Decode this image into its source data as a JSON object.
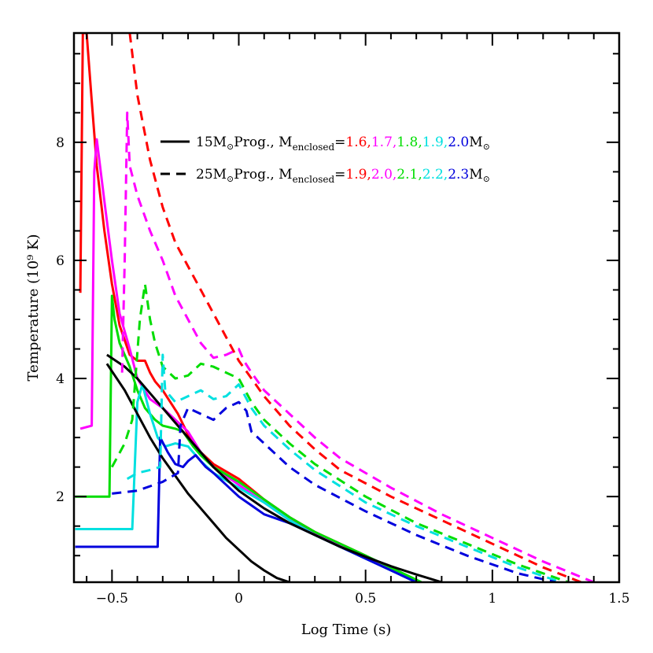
{
  "chart_data": {
    "type": "line",
    "xlabel": "Log Time (s)",
    "ylabel": "Temperature (10⁹ K)",
    "xlim": [
      -0.65,
      1.5
    ],
    "ylim": [
      0.55,
      9.85
    ],
    "x_ticks": [
      -0.5,
      0,
      0.5,
      1,
      1.5
    ],
    "x_tick_labels": [
      "−0.5",
      "0",
      "0.5",
      "1",
      "1.5"
    ],
    "y_ticks": [
      2,
      4,
      6,
      8
    ],
    "y_tick_labels": [
      "2",
      "4",
      "6",
      "8"
    ],
    "legend_placement": "top-center",
    "legend": [
      {
        "linestyle": "solid",
        "label_main": "15M",
        "label_sub1": "Prog., M",
        "label_sub2": "enclosed",
        "label_eq": "=",
        "masses": [
          {
            "text": "1.6,",
            "color": "#ff0000"
          },
          {
            "text": "1.7,",
            "color": "#ff00ff"
          },
          {
            "text": "1.8,",
            "color": "#00dd00"
          },
          {
            "text": "1.9,",
            "color": "#00e0e0"
          },
          {
            "text": "2.0",
            "color": "#0000dd"
          }
        ],
        "label_end": "M"
      },
      {
        "linestyle": "dashed",
        "label_main": "25M",
        "label_sub1": "Prog., M",
        "label_sub2": "enclosed",
        "label_eq": "=",
        "masses": [
          {
            "text": "1.9,",
            "color": "#ff0000"
          },
          {
            "text": "2.0,",
            "color": "#ff00ff"
          },
          {
            "text": "2.1,",
            "color": "#00dd00"
          },
          {
            "text": "2.2,",
            "color": "#00e0e0"
          },
          {
            "text": "2.3",
            "color": "#0000dd"
          }
        ],
        "label_end": "M"
      }
    ],
    "series": [
      {
        "color": "#ff0000",
        "dash": "solid",
        "x": [
          -0.625,
          -0.615,
          -0.6,
          -0.58,
          -0.56,
          -0.53,
          -0.5,
          -0.47,
          -0.43,
          -0.4,
          -0.37,
          -0.35,
          -0.33,
          -0.3,
          -0.27,
          -0.24,
          -0.2,
          -0.15,
          -0.1,
          0.0,
          0.1,
          0.2,
          0.3,
          0.5,
          0.7
        ],
        "y": [
          5.45,
          9.85,
          9.85,
          8.7,
          7.6,
          6.5,
          5.6,
          4.9,
          4.4,
          4.3,
          4.3,
          4.1,
          3.95,
          3.8,
          3.6,
          3.4,
          3.05,
          2.75,
          2.55,
          2.3,
          1.95,
          1.65,
          1.4,
          1.0,
          0.55
        ]
      },
      {
        "color": "#ff00ff",
        "dash": "solid",
        "x": [
          -0.625,
          -0.58,
          -0.57,
          -0.56,
          -0.53,
          -0.5,
          -0.47,
          -0.43,
          -0.4,
          -0.35,
          -0.3,
          -0.25,
          -0.2,
          -0.15,
          -0.1,
          0.0,
          0.1,
          0.2,
          0.3,
          0.5,
          0.7
        ],
        "y": [
          3.15,
          3.2,
          7.5,
          8.05,
          7.0,
          6.0,
          5.1,
          4.5,
          4.0,
          3.65,
          3.5,
          3.3,
          3.1,
          2.75,
          2.5,
          2.2,
          1.9,
          1.6,
          1.38,
          0.98,
          0.55
        ]
      },
      {
        "color": "#00dd00",
        "dash": "solid",
        "x": [
          -0.645,
          -0.51,
          -0.5,
          -0.49,
          -0.47,
          -0.43,
          -0.4,
          -0.37,
          -0.33,
          -0.3,
          -0.25,
          -0.22,
          -0.18,
          -0.15,
          -0.1,
          0.0,
          0.1,
          0.2,
          0.3,
          0.5,
          0.72
        ],
        "y": [
          2.0,
          2.0,
          5.4,
          5.0,
          4.6,
          4.2,
          3.8,
          3.5,
          3.3,
          3.2,
          3.15,
          3.1,
          2.85,
          2.7,
          2.5,
          2.25,
          1.95,
          1.65,
          1.4,
          1.0,
          0.55
        ]
      },
      {
        "color": "#00e0e0",
        "dash": "solid",
        "x": [
          -0.645,
          -0.42,
          -0.4,
          -0.38,
          -0.35,
          -0.32,
          -0.29,
          -0.25,
          -0.2,
          -0.15,
          -0.1,
          0.0,
          0.1,
          0.2,
          0.3,
          0.5,
          0.7
        ],
        "y": [
          1.45,
          1.45,
          3.6,
          3.9,
          3.4,
          3.0,
          2.85,
          2.9,
          2.85,
          2.6,
          2.4,
          2.15,
          1.9,
          1.6,
          1.35,
          0.95,
          0.55
        ]
      },
      {
        "color": "#0000dd",
        "dash": "solid",
        "x": [
          -0.645,
          -0.32,
          -0.31,
          -0.28,
          -0.25,
          -0.22,
          -0.2,
          -0.17,
          -0.13,
          -0.1,
          -0.05,
          0.0,
          0.05,
          0.1,
          0.2,
          0.3,
          0.5,
          0.7
        ],
        "y": [
          1.15,
          1.15,
          3.0,
          2.75,
          2.55,
          2.5,
          2.6,
          2.7,
          2.5,
          2.4,
          2.2,
          2.0,
          1.85,
          1.7,
          1.55,
          1.35,
          0.95,
          0.55
        ]
      },
      {
        "color": "#000000",
        "dash": "solid",
        "x": [
          -0.52,
          -0.45,
          -0.4,
          -0.35,
          -0.3,
          -0.25,
          -0.2,
          -0.15,
          -0.1,
          -0.05,
          0.0,
          0.05,
          0.1,
          0.15,
          0.2
        ],
        "y": [
          4.25,
          3.8,
          3.4,
          3.0,
          2.65,
          2.35,
          2.05,
          1.8,
          1.55,
          1.3,
          1.1,
          0.9,
          0.75,
          0.62,
          0.55
        ]
      },
      {
        "color": "#000000",
        "dash": "solid",
        "x": [
          -0.52,
          -0.45,
          -0.4,
          -0.35,
          -0.3,
          -0.25,
          -0.2,
          -0.15,
          -0.1,
          -0.05,
          0.0,
          0.1,
          0.2,
          0.3,
          0.4,
          0.5,
          0.6,
          0.7,
          0.8
        ],
        "y": [
          4.4,
          4.2,
          4.0,
          3.75,
          3.5,
          3.25,
          3.0,
          2.75,
          2.5,
          2.3,
          2.1,
          1.8,
          1.55,
          1.35,
          1.15,
          0.98,
          0.82,
          0.68,
          0.55
        ]
      },
      {
        "color": "#ff0000",
        "dash": "dashed",
        "x": [
          -0.43,
          -0.4,
          -0.35,
          -0.3,
          -0.25,
          -0.2,
          -0.15,
          -0.1,
          -0.05,
          0.0,
          0.1,
          0.2,
          0.3,
          0.4,
          0.6,
          0.8,
          1.0,
          1.2,
          1.35
        ],
        "y": [
          9.85,
          8.8,
          7.7,
          6.9,
          6.3,
          5.9,
          5.5,
          5.1,
          4.7,
          4.3,
          3.7,
          3.2,
          2.8,
          2.45,
          2.0,
          1.6,
          1.2,
          0.8,
          0.55
        ]
      },
      {
        "color": "#ff00ff",
        "dash": "dashed",
        "x": [
          -0.46,
          -0.45,
          -0.44,
          -0.43,
          -0.4,
          -0.35,
          -0.3,
          -0.25,
          -0.2,
          -0.15,
          -0.1,
          -0.05,
          0.0,
          0.02,
          0.05,
          0.1,
          0.2,
          0.3,
          0.4,
          0.6,
          0.8,
          1.0,
          1.2,
          1.4
        ],
        "y": [
          4.1,
          6.0,
          8.5,
          7.6,
          7.1,
          6.5,
          6.0,
          5.4,
          5.0,
          4.6,
          4.35,
          4.4,
          4.5,
          4.3,
          4.1,
          3.8,
          3.4,
          3.0,
          2.65,
          2.15,
          1.7,
          1.3,
          0.9,
          0.55
        ]
      },
      {
        "color": "#00dd00",
        "dash": "dashed",
        "x": [
          -0.5,
          -0.45,
          -0.42,
          -0.39,
          -0.37,
          -0.35,
          -0.33,
          -0.3,
          -0.25,
          -0.2,
          -0.15,
          -0.1,
          -0.05,
          0.0,
          0.05,
          0.1,
          0.2,
          0.3,
          0.5,
          0.7,
          0.9,
          1.1,
          1.3
        ],
        "y": [
          2.5,
          2.9,
          3.3,
          5.0,
          5.6,
          5.0,
          4.6,
          4.2,
          4.0,
          4.05,
          4.25,
          4.2,
          4.1,
          4.0,
          3.6,
          3.3,
          2.9,
          2.55,
          2.0,
          1.55,
          1.2,
          0.85,
          0.55
        ]
      },
      {
        "color": "#00e0e0",
        "dash": "dashed",
        "x": [
          -0.44,
          -0.4,
          -0.35,
          -0.31,
          -0.3,
          -0.29,
          -0.27,
          -0.25,
          -0.2,
          -0.15,
          -0.1,
          -0.05,
          0.0,
          0.05,
          0.1,
          0.2,
          0.3,
          0.5,
          0.7,
          0.9,
          1.1,
          1.27
        ],
        "y": [
          2.3,
          2.4,
          2.45,
          2.5,
          4.4,
          3.8,
          3.7,
          3.6,
          3.7,
          3.8,
          3.65,
          3.7,
          3.9,
          3.5,
          3.2,
          2.8,
          2.45,
          1.9,
          1.5,
          1.15,
          0.8,
          0.55
        ]
      },
      {
        "color": "#0000dd",
        "dash": "dashed",
        "x": [
          -0.5,
          -0.4,
          -0.3,
          -0.24,
          -0.23,
          -0.22,
          -0.2,
          -0.15,
          -0.1,
          -0.05,
          0.0,
          0.03,
          0.05,
          0.1,
          0.2,
          0.3,
          0.5,
          0.7,
          0.9,
          1.1,
          1.25
        ],
        "y": [
          2.05,
          2.1,
          2.25,
          2.4,
          3.2,
          3.3,
          3.5,
          3.4,
          3.3,
          3.5,
          3.6,
          3.45,
          3.1,
          2.9,
          2.5,
          2.2,
          1.75,
          1.35,
          1.0,
          0.7,
          0.55
        ]
      }
    ]
  }
}
